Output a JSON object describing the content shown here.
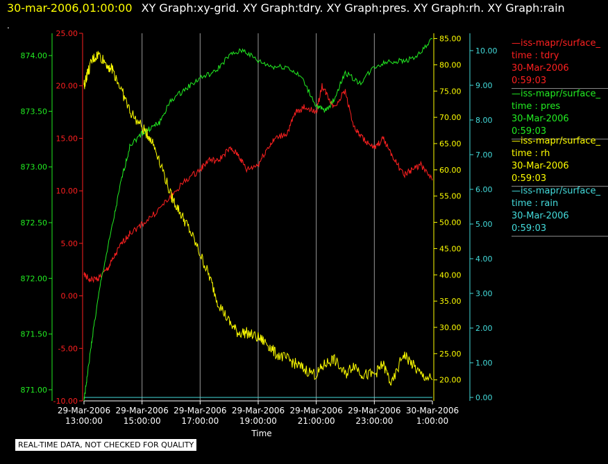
{
  "header": {
    "timestamp": "30-mar-2006,01:00:00",
    "titles": "XY Graph:xy-grid.  XY Graph:tdry.  XY Graph:pres.  XY Graph:rh.  XY Graph:rain"
  },
  "dot_text": ".",
  "banner": "REAL-TIME DATA, NOT CHECKED FOR QUALITY",
  "legend": [
    {
      "name": "—iss-mapr/surface_",
      "var": "time : tdry",
      "date": "30-Mar-2006",
      "time": "0:59:03"
    },
    {
      "name": "—iss-mapr/surface_",
      "var": "time : pres",
      "date": "30-Mar-2006",
      "time": "0:59:03"
    },
    {
      "name": "—iss-mapr/surface_",
      "var": "time : rh",
      "date": "30-Mar-2006",
      "time": "0:59:03"
    },
    {
      "name": "—iss-mapr/surface_",
      "var": "time : rain",
      "date": "30-Mar-2006",
      "time": "0:59:03"
    }
  ],
  "colors": {
    "tdry": "#ff2020",
    "pres": "#22ee22",
    "rh": "#ffff00",
    "rain": "#44dddd",
    "grid": "#999999",
    "axis": "#ffffff"
  },
  "chart_data": {
    "type": "line",
    "xlabel": "Time",
    "x_ticks": [
      [
        "29-Mar-2006",
        "13:00:00"
      ],
      [
        "29-Mar-2006",
        "15:00:00"
      ],
      [
        "29-Mar-2006",
        "17:00:00"
      ],
      [
        "29-Mar-2006",
        "19:00:00"
      ],
      [
        "29-Mar-2006",
        "21:00:00"
      ],
      [
        "29-Mar-2006",
        "23:00:00"
      ],
      [
        "30-Mar-2006",
        "1:00:00"
      ]
    ],
    "x_range_hours": [
      13,
      25
    ],
    "axes": {
      "pres": {
        "range": [
          870.9,
          874.2
        ],
        "ticks": [
          "871.00",
          "871.50",
          "872.00",
          "872.50",
          "873.00",
          "873.50",
          "874.00"
        ]
      },
      "tdry": {
        "range": [
          -10,
          25
        ],
        "ticks": [
          "-10.00",
          "-5.00",
          "0.00",
          "5.00",
          "10.00",
          "15.00",
          "20.00",
          "25.00"
        ]
      },
      "rh": {
        "range": [
          16,
          86
        ],
        "ticks": [
          "20.00",
          "25.00",
          "30.00",
          "35.00",
          "40.00",
          "45.00",
          "50.00",
          "55.00",
          "60.00",
          "65.00",
          "70.00",
          "75.00",
          "80.00",
          "85.00"
        ]
      },
      "rain": {
        "range": [
          -0.1,
          10.5
        ],
        "ticks": [
          "0.00",
          "1.00",
          "2.00",
          "3.00",
          "4.00",
          "5.00",
          "6.00",
          "7.00",
          "8.00",
          "9.00",
          "10.00"
        ]
      }
    },
    "series": [
      {
        "name": "tdry",
        "hours": [
          13,
          13.2,
          13.5,
          13.8,
          14,
          14.3,
          14.6,
          15,
          15.5,
          16,
          16.5,
          17,
          17.3,
          17.6,
          18,
          18.3,
          18.6,
          19,
          19.3,
          19.6,
          20,
          20.3,
          20.6,
          21,
          21.2,
          21.4,
          21.6,
          22,
          22.3,
          22.6,
          23,
          23.3,
          23.6,
          24,
          24.3,
          24.6,
          25
        ],
        "values": [
          2.0,
          1.5,
          1.7,
          2.5,
          3.5,
          5.0,
          6.0,
          6.8,
          8.0,
          9.5,
          11.0,
          12.0,
          13.0,
          12.8,
          14.0,
          13.5,
          12.0,
          12.5,
          14.0,
          15.0,
          15.5,
          17.5,
          18.0,
          17.5,
          20.0,
          19.0,
          18.0,
          19.5,
          16.0,
          15.0,
          14.0,
          15.0,
          13.5,
          11.5,
          12.0,
          12.5,
          11.0
        ]
      },
      {
        "name": "pres",
        "hours": [
          13,
          13.1,
          13.3,
          13.6,
          14,
          14.3,
          14.6,
          15,
          15.3,
          15.6,
          16,
          16.5,
          17,
          17.5,
          18,
          18.5,
          19,
          19.5,
          20,
          20.5,
          21,
          21.3,
          21.6,
          22,
          22.5,
          23,
          23.5,
          24,
          24.5,
          25
        ],
        "values": [
          870.9,
          871.1,
          871.5,
          872.0,
          872.5,
          872.9,
          873.2,
          873.3,
          873.35,
          873.4,
          873.6,
          873.7,
          873.8,
          873.85,
          874.0,
          874.05,
          873.95,
          873.9,
          873.9,
          873.8,
          873.55,
          873.5,
          873.6,
          873.85,
          873.75,
          873.9,
          873.95,
          873.95,
          874.0,
          874.15
        ]
      },
      {
        "name": "rh",
        "hours": [
          13,
          13.1,
          13.3,
          13.5,
          13.8,
          14,
          14.3,
          14.6,
          15,
          15.3,
          15.6,
          16,
          16.3,
          16.6,
          17,
          17.3,
          17.6,
          18,
          18.3,
          18.6,
          19,
          19.3,
          19.6,
          20,
          20.3,
          20.6,
          21,
          21.3,
          21.6,
          22,
          22.3,
          22.6,
          23,
          23.3,
          23.6,
          24,
          24.3,
          24.6,
          25
        ],
        "values": [
          76,
          78,
          81,
          82,
          80,
          79,
          75,
          71,
          68,
          66,
          62,
          55,
          52,
          49,
          44,
          40,
          35,
          31,
          29,
          29,
          28,
          27,
          25,
          24,
          23,
          22,
          21,
          23,
          24,
          21,
          23,
          21,
          21,
          23,
          19,
          25,
          23,
          21,
          20
        ]
      },
      {
        "name": "rain",
        "hours": [
          13,
          25
        ],
        "values": [
          0,
          0
        ]
      }
    ]
  }
}
